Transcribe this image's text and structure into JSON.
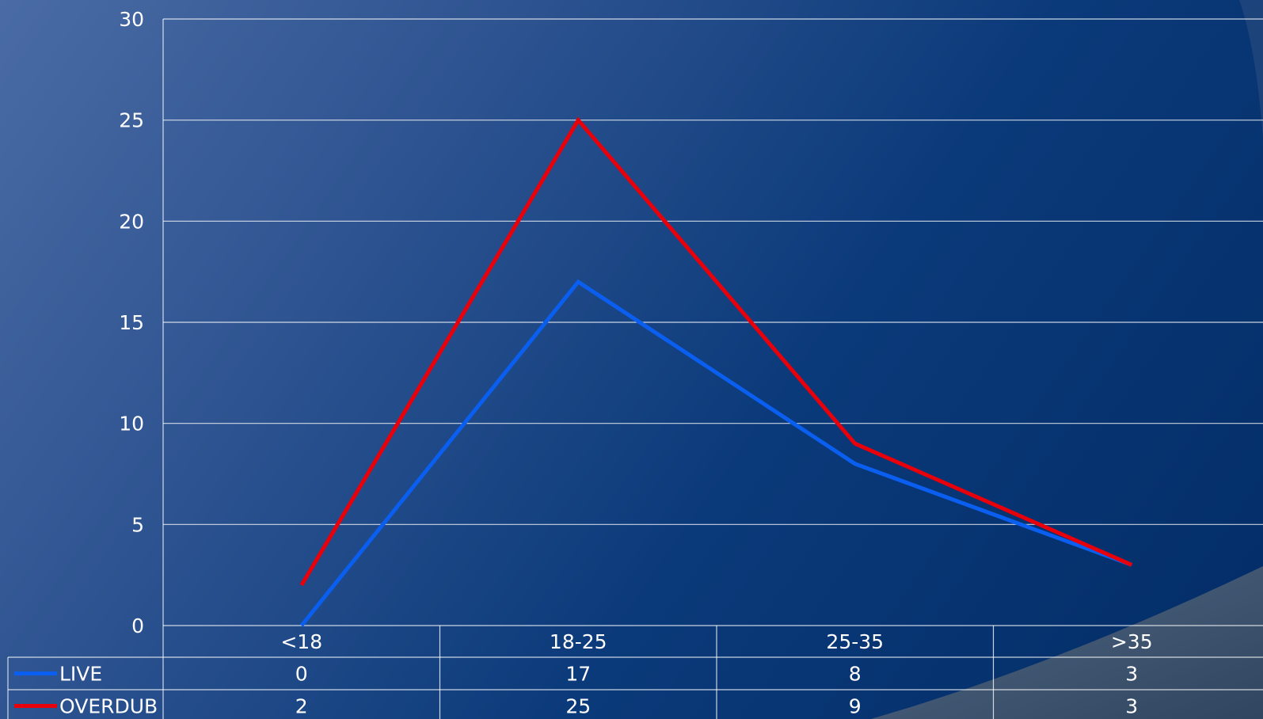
{
  "chart_data": {
    "type": "line",
    "title": "",
    "xlabel": "",
    "ylabel": "",
    "categories": [
      "<18",
      "18-25",
      "25-35",
      ">35"
    ],
    "ylim": [
      0,
      30
    ],
    "yticks": [
      0,
      5,
      10,
      15,
      20,
      25,
      30
    ],
    "grid": true,
    "legend_placement": "data-table",
    "series": [
      {
        "name": "LIVE",
        "values": [
          0,
          17,
          8,
          3
        ],
        "color": "#0a5ff0"
      },
      {
        "name": "OVERDUB",
        "values": [
          2,
          25,
          9,
          3
        ],
        "color": "#e8000b"
      }
    ]
  }
}
